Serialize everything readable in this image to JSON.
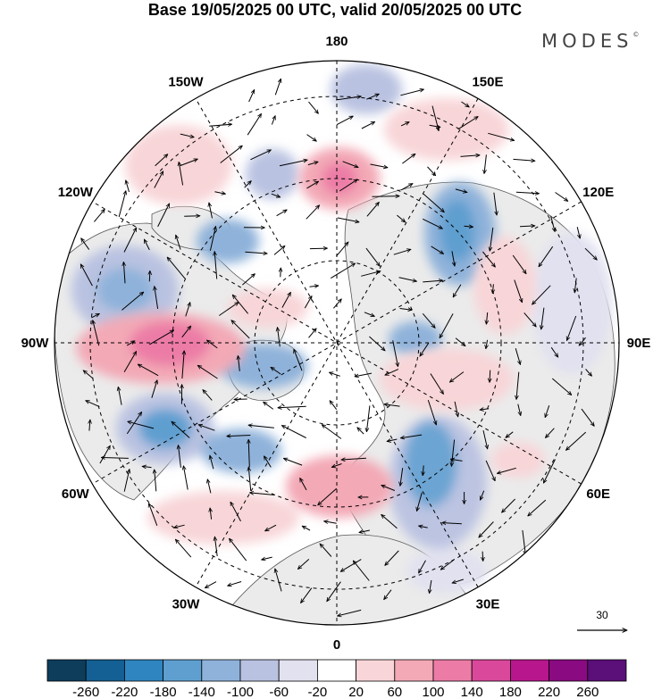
{
  "title": "Base 19/05/2025 00 UTC, valid 20/05/2025 00 UTC",
  "brand": "MODES",
  "brand_mark": "©",
  "projection": "north-polar-stereographic",
  "longitude_labels": [
    {
      "text": "180",
      "lon": 180
    },
    {
      "text": "150E",
      "lon": 150
    },
    {
      "text": "120E",
      "lon": 120
    },
    {
      "text": "90E",
      "lon": 90
    },
    {
      "text": "60E",
      "lon": 60
    },
    {
      "text": "30E",
      "lon": 30
    },
    {
      "text": "0",
      "lon": 0
    },
    {
      "text": "30W",
      "lon": -30
    },
    {
      "text": "60W",
      "lon": -60
    },
    {
      "text": "90W",
      "lon": -90
    },
    {
      "text": "120W",
      "lon": -120
    },
    {
      "text": "150W",
      "lon": -150
    }
  ],
  "wind_reference": {
    "value": "30"
  },
  "colorbar": {
    "ticks": [
      "-260",
      "-220",
      "-180",
      "-140",
      "-100",
      "-60",
      "-20",
      "20",
      "60",
      "100",
      "140",
      "180",
      "220",
      "260"
    ],
    "colors": [
      "#0e3d5c",
      "#145f93",
      "#2f85bf",
      "#5e9fd0",
      "#8fb2da",
      "#b9c2e1",
      "#e1e1f0",
      "#ffffff",
      "#f8d5d8",
      "#f3a9b6",
      "#ec7ca6",
      "#d9489a",
      "#b8168c",
      "#8a0a82",
      "#5b0f78"
    ]
  },
  "anomaly_colors": {
    "neg1": "#e1e1f0",
    "neg2": "#b9c2e1",
    "neg3": "#8fb2da",
    "neg4": "#5e9fd0",
    "pos1": "#f8d5d8",
    "pos2": "#f3a9b6",
    "pos3": "#ec7ca6",
    "pos4": "#d9489a"
  }
}
